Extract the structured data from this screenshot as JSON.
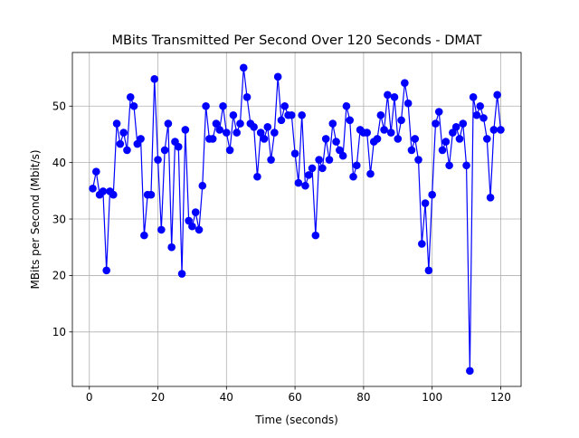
{
  "chart_data": {
    "type": "line",
    "title": "MBits Transmitted Per Second Over 120 Seconds - DMAT",
    "xlabel": "Time (seconds)",
    "ylabel": "MBits per Second (Mbit/s)",
    "xlim": [
      -4.95,
      125.95
    ],
    "ylim": [
      0.35,
      59.5
    ],
    "xticks": [
      0,
      20,
      40,
      60,
      80,
      100,
      120
    ],
    "yticks": [
      10,
      20,
      30,
      40,
      50
    ],
    "grid": true,
    "line_color": "#0000ff",
    "marker": "circle",
    "series": [
      {
        "x": [
          1,
          2,
          3,
          4,
          5,
          6,
          7,
          8,
          9,
          10,
          11,
          12,
          13,
          14,
          15,
          16,
          17,
          18,
          19,
          20,
          21,
          22,
          23,
          24,
          25,
          26,
          27,
          28,
          29,
          30,
          31,
          32,
          33,
          34,
          35,
          36,
          37,
          38,
          39,
          40,
          41,
          42,
          43,
          44,
          45,
          46,
          47,
          48,
          49,
          50,
          51,
          52,
          53,
          54,
          55,
          56,
          57,
          58,
          59,
          60,
          61,
          62,
          63,
          64,
          65,
          66,
          67,
          68,
          69,
          70,
          71,
          72,
          73,
          74,
          75,
          76,
          77,
          78,
          79,
          80,
          81,
          82,
          83,
          84,
          85,
          86,
          87,
          88,
          89,
          90,
          91,
          92,
          93,
          94,
          95,
          96,
          97,
          98,
          99,
          100,
          101,
          102,
          103,
          104,
          105,
          106,
          107,
          108,
          109,
          110,
          111,
          112,
          113,
          114,
          115,
          116,
          117,
          118,
          119,
          120
        ],
        "values": [
          35.4,
          38.4,
          34.3,
          34.9,
          20.9,
          34.9,
          34.3,
          46.9,
          43.3,
          45.3,
          42.2,
          51.6,
          50.0,
          43.3,
          44.2,
          27.1,
          34.3,
          34.3,
          54.8,
          40.5,
          28.1,
          42.2,
          46.9,
          25.0,
          43.7,
          42.8,
          20.3,
          45.8,
          29.7,
          28.7,
          31.2,
          28.1,
          35.9,
          50.0,
          44.2,
          44.2,
          46.9,
          45.8,
          50.0,
          45.3,
          42.2,
          48.4,
          45.3,
          46.9,
          56.8,
          51.6,
          46.9,
          46.3,
          37.5,
          45.3,
          44.2,
          46.3,
          40.5,
          45.3,
          55.2,
          47.5,
          50.0,
          48.4,
          48.4,
          41.6,
          36.4,
          48.4,
          35.9,
          37.8,
          39.0,
          27.1,
          40.5,
          39.0,
          44.2,
          40.5,
          46.9,
          43.7,
          42.2,
          41.2,
          50.0,
          47.5,
          37.5,
          39.5,
          45.8,
          45.3,
          45.3,
          38.0,
          43.7,
          44.2,
          48.4,
          45.8,
          52.0,
          45.3,
          51.6,
          44.2,
          47.5,
          54.1,
          50.5,
          42.2,
          44.2,
          40.5,
          25.6,
          32.8,
          20.9,
          34.3,
          46.9,
          49.0,
          42.2,
          43.7,
          39.5,
          45.3,
          46.3,
          44.2,
          46.9,
          39.5,
          3.1,
          51.6,
          48.4,
          50.0,
          47.9,
          44.2,
          33.8,
          45.8,
          52.0,
          45.8
        ]
      }
    ]
  }
}
